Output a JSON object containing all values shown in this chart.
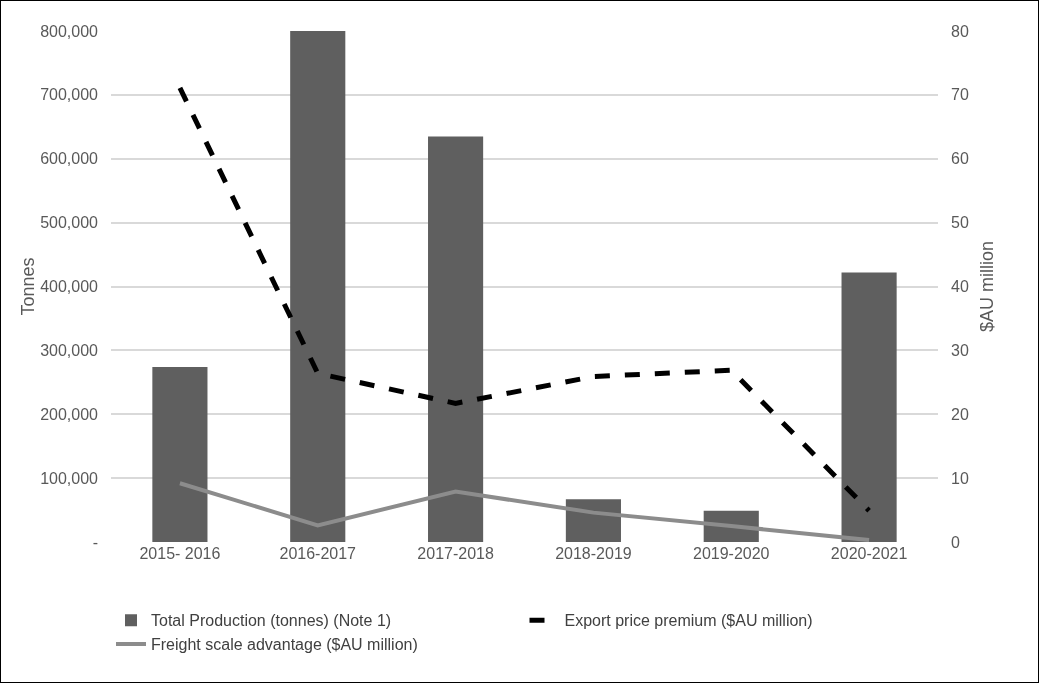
{
  "chart_data": {
    "type": "bar",
    "ylabel": "Tonnes",
    "y2label": "$AU million",
    "categories": [
      "2015- 2016",
      "2016-2017",
      "2017-2018",
      "2018-2019",
      "2019-2020",
      "2020-2021"
    ],
    "series": [
      {
        "name": "Total Production (tonnes) (Note 1)",
        "color": "#5f5f5f",
        "values": [
          274000,
          800000,
          635000,
          67000,
          49000,
          422000
        ]
      },
      {
        "name": "Export price premium ($AU million)",
        "type": "line",
        "axis": "y2",
        "line_style": "dashed",
        "color": "#000000",
        "values": [
          71.1,
          26.4,
          21.7,
          25.9,
          26.9,
          4.9
        ]
      },
      {
        "name": "Freight scale advantage ($AU million)",
        "type": "line",
        "axis": "y2",
        "line_style": "solid",
        "color": "#8c8c8c",
        "values": [
          9.2,
          2.6,
          7.9,
          4.6,
          2.5,
          0.3
        ]
      }
    ],
    "ylim": [
      0,
      800000
    ],
    "yticks": [
      {
        "value": 0,
        "label": "-"
      },
      {
        "value": 100000,
        "label": "100,000"
      },
      {
        "value": 200000,
        "label": "200,000"
      },
      {
        "value": 300000,
        "label": "300,000"
      },
      {
        "value": 400000,
        "label": "400,000"
      },
      {
        "value": 500000,
        "label": "500,000"
      },
      {
        "value": 600000,
        "label": "600,000"
      },
      {
        "value": 700000,
        "label": "700,000"
      },
      {
        "value": 800000,
        "label": "800,000"
      }
    ],
    "y2lim": [
      0,
      80
    ],
    "y2ticks": [
      0,
      10,
      20,
      30,
      40,
      50,
      60,
      70,
      80
    ],
    "grid": "y",
    "legend": "bottom",
    "marker": "none"
  }
}
